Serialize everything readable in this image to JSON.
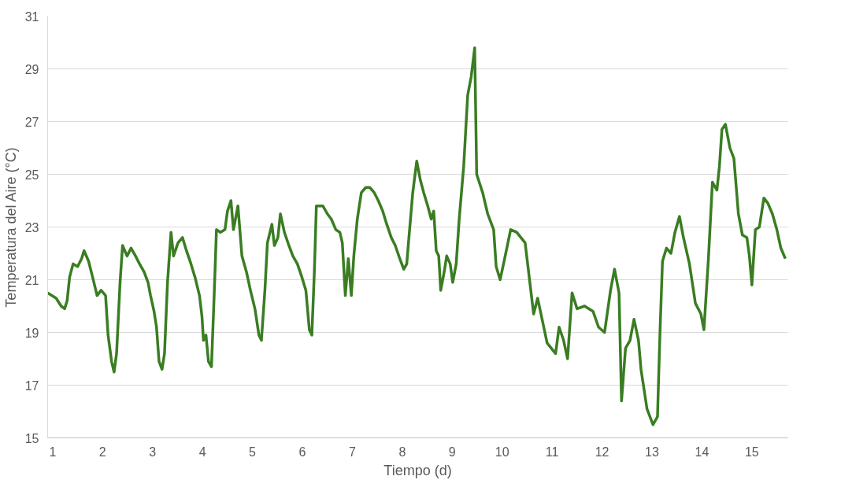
{
  "chart_data": {
    "type": "line",
    "xlabel": "Tiempo (d)",
    "ylabel": "Temperatura del Aire (°C)",
    "xlim": [
      0.9,
      15.72
    ],
    "xticks": [
      1,
      2,
      3,
      4,
      5,
      6,
      7,
      8,
      9,
      10,
      11,
      12,
      13,
      14,
      15
    ],
    "ylim": [
      15,
      31
    ],
    "yticks": [
      15,
      17,
      19,
      21,
      23,
      25,
      27,
      29,
      31
    ],
    "grid": "y",
    "marker": "none",
    "line_style": "solid",
    "series": [
      {
        "color": "#3a7d22",
        "x": [
          0.9,
          1.07,
          1.17,
          1.24,
          1.29,
          1.34,
          1.41,
          1.5,
          1.58,
          1.63,
          1.72,
          1.8,
          1.89,
          1.97,
          2.06,
          2.11,
          2.18,
          2.23,
          2.28,
          2.35,
          2.4,
          2.49,
          2.57,
          2.66,
          2.74,
          2.83,
          2.91,
          2.96,
          3.03,
          3.08,
          3.13,
          3.19,
          3.24,
          3.3,
          3.37,
          3.42,
          3.51,
          3.6,
          3.68,
          3.77,
          3.85,
          3.94,
          3.99,
          4.02,
          4.07,
          4.12,
          4.18,
          4.23,
          4.28,
          4.36,
          4.45,
          4.5,
          4.57,
          4.62,
          4.71,
          4.79,
          4.88,
          4.96,
          5.05,
          5.13,
          5.18,
          5.25,
          5.3,
          5.39,
          5.44,
          5.51,
          5.56,
          5.64,
          5.73,
          5.81,
          5.9,
          5.99,
          6.07,
          6.14,
          6.19,
          6.24,
          6.28,
          6.33,
          6.41,
          6.5,
          6.58,
          6.67,
          6.75,
          6.8,
          6.86,
          6.92,
          6.98,
          7.03,
          7.1,
          7.18,
          7.27,
          7.35,
          7.44,
          7.52,
          7.61,
          7.69,
          7.78,
          7.86,
          7.95,
          8.03,
          8.09,
          8.12,
          8.21,
          8.29,
          8.36,
          8.43,
          8.51,
          8.58,
          8.63,
          8.68,
          8.73,
          8.77,
          8.84,
          8.89,
          8.96,
          9.01,
          9.08,
          9.14,
          9.23,
          9.31,
          9.38,
          9.45,
          9.49,
          9.61,
          9.71,
          9.83,
          9.88,
          9.96,
          10.05,
          10.17,
          10.29,
          10.46,
          10.63,
          10.71,
          10.8,
          10.9,
          11.07,
          11.14,
          11.23,
          11.31,
          11.4,
          11.5,
          11.65,
          11.82,
          11.93,
          12.05,
          12.17,
          12.25,
          12.34,
          12.39,
          12.47,
          12.56,
          12.64,
          12.73,
          12.78,
          12.9,
          13.02,
          13.11,
          13.16,
          13.21,
          13.29,
          13.38,
          13.46,
          13.55,
          13.63,
          13.75,
          13.87,
          13.98,
          14.04,
          14.13,
          14.21,
          14.3,
          14.35,
          14.4,
          14.47,
          14.56,
          14.64,
          14.73,
          14.81,
          14.9,
          14.95,
          15.0,
          15.07,
          15.15,
          15.24,
          15.32,
          15.41,
          15.5,
          15.58,
          15.67
        ],
        "values": [
          20.5,
          20.3,
          20.0,
          19.9,
          20.2,
          21.1,
          21.6,
          21.5,
          21.8,
          22.1,
          21.7,
          21.1,
          20.4,
          20.6,
          20.4,
          18.9,
          17.9,
          17.5,
          18.2,
          20.9,
          22.3,
          21.9,
          22.2,
          21.9,
          21.6,
          21.3,
          20.9,
          20.4,
          19.8,
          19.2,
          17.9,
          17.6,
          18.2,
          20.9,
          22.8,
          21.9,
          22.4,
          22.6,
          22.1,
          21.6,
          21.1,
          20.4,
          19.6,
          18.7,
          18.9,
          17.9,
          17.7,
          20.2,
          22.9,
          22.8,
          22.9,
          23.6,
          24.0,
          22.9,
          23.8,
          21.9,
          21.3,
          20.6,
          19.9,
          18.9,
          18.7,
          20.6,
          22.4,
          23.1,
          22.3,
          22.6,
          23.5,
          22.8,
          22.3,
          21.9,
          21.6,
          21.1,
          20.6,
          19.1,
          18.9,
          21.3,
          23.8,
          23.8,
          23.8,
          23.5,
          23.3,
          22.9,
          22.8,
          22.4,
          20.4,
          21.8,
          20.4,
          21.9,
          23.3,
          24.3,
          24.5,
          24.5,
          24.3,
          24.0,
          23.6,
          23.1,
          22.6,
          22.3,
          21.8,
          21.4,
          21.6,
          22.3,
          24.3,
          25.5,
          24.8,
          24.3,
          23.8,
          23.3,
          23.6,
          22.1,
          21.9,
          20.6,
          21.3,
          21.9,
          21.6,
          20.9,
          21.6,
          23.3,
          25.3,
          28.0,
          28.7,
          29.8,
          25.0,
          24.3,
          23.5,
          22.9,
          21.5,
          21.0,
          21.8,
          22.9,
          22.8,
          22.4,
          19.7,
          20.3,
          19.5,
          18.6,
          18.2,
          19.2,
          18.7,
          18.0,
          20.5,
          19.9,
          20.0,
          19.8,
          19.2,
          19.0,
          20.6,
          21.4,
          20.5,
          16.4,
          18.4,
          18.7,
          19.5,
          18.7,
          17.6,
          16.1,
          15.5,
          15.8,
          19.0,
          21.7,
          22.2,
          22.0,
          22.8,
          23.4,
          22.6,
          21.6,
          20.1,
          19.7,
          19.1,
          21.8,
          24.7,
          24.4,
          25.3,
          26.7,
          26.9,
          26.0,
          25.6,
          23.5,
          22.7,
          22.6,
          21.9,
          20.8,
          22.9,
          23.0,
          24.1,
          23.9,
          23.5,
          22.9,
          22.2,
          21.8
        ]
      }
    ]
  }
}
